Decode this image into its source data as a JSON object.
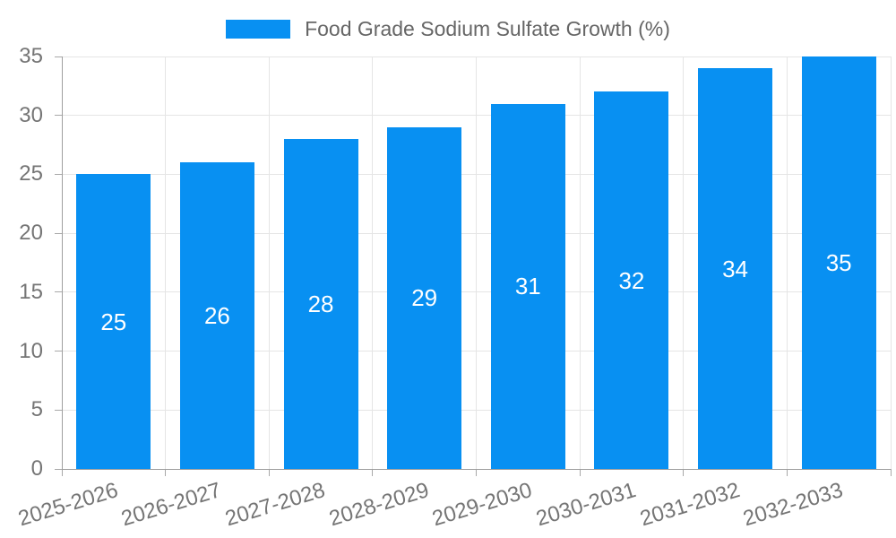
{
  "chart_data": {
    "type": "bar",
    "title": "Food Grade Sodium Sulfate Growth (%)",
    "series_name": "Food Grade Sodium Sulfate Growth (%)",
    "categories": [
      "2025-2026",
      "2026-2027",
      "2027-2028",
      "2028-2029",
      "2029-2030",
      "2030-2031",
      "2031-2032",
      "2032-2033"
    ],
    "values": [
      25,
      26,
      28,
      29,
      31,
      32,
      34,
      35
    ],
    "value_labels": [
      "25",
      "26",
      "28",
      "29",
      "31",
      "32",
      "34",
      "35"
    ],
    "xlabel": "",
    "ylabel": "",
    "ylim": [
      0,
      35
    ],
    "yticks": [
      0,
      5,
      10,
      15,
      20,
      25,
      30,
      35
    ],
    "grid": true,
    "legend_position": "top",
    "colors": {
      "bar": "#0890f2",
      "value_label": "#ffffff",
      "grid_line": "#e5e5e5",
      "axis_line": "#9e9e9e",
      "tick_mark": "#a8a8a8",
      "tick_label": "#757575",
      "legend_text": "#666666",
      "background": "#ffffff"
    }
  }
}
